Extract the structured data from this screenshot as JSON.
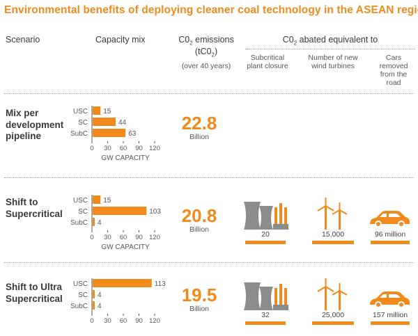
{
  "title": "Environmental benefits of deploying cleaner coal technology in the ASEAN region",
  "headers": {
    "scenario": "Scenario",
    "capacity_mix": "Capacity mix",
    "emissions_line1": "C0",
    "emissions_sub": "2",
    "emissions_tail": " emissions",
    "emissions_line2a": "(tC0",
    "emissions_line2b": "2",
    "emissions_line2c": ")",
    "emissions_period": "(over 40 years)",
    "abated_a": "C0",
    "abated_sub": "2",
    "abated_b": " abated equivalent to",
    "sub_plant": "Subcritical plant closure",
    "sub_turbines": "Number of new wind turbines",
    "sub_cars": "Cars removed from the road"
  },
  "scenarios": [
    {
      "name": "Mix per development pipeline",
      "emissions": "22.8",
      "unit": "Billion",
      "plants": null,
      "turbines": null,
      "cars": null
    },
    {
      "name": "Shift to Supercritical",
      "emissions": "20.8",
      "unit": "Billion",
      "plants": "20",
      "turbines": "15,000",
      "cars": "96 million"
    },
    {
      "name": "Shift to Ultra Supercritical",
      "emissions": "19.5",
      "unit": "Billion",
      "plants": "32",
      "turbines": "25,000",
      "cars": "157 million"
    }
  ],
  "chart_data": [
    {
      "type": "bar",
      "orientation": "horizontal",
      "title": "Mix per development pipeline",
      "categories": [
        "USC",
        "SC",
        "SubC"
      ],
      "values": [
        15,
        44,
        63
      ],
      "xlabel": "GW CAPACITY",
      "xlim": [
        0,
        120
      ],
      "xticks": [
        0,
        30,
        60,
        90,
        120
      ]
    },
    {
      "type": "bar",
      "orientation": "horizontal",
      "title": "Shift to Supercritical",
      "categories": [
        "USC",
        "SC",
        "SubC"
      ],
      "values": [
        15,
        103,
        4
      ],
      "xlabel": "GW CAPACITY",
      "xlim": [
        0,
        120
      ],
      "xticks": [
        0,
        30,
        60,
        90,
        120
      ]
    },
    {
      "type": "bar",
      "orientation": "horizontal",
      "title": "Shift to Ultra Supercritical",
      "categories": [
        "USC",
        "SC",
        "SubC"
      ],
      "values": [
        113,
        4,
        4
      ],
      "xlabel": "",
      "xlim": [
        0,
        120
      ],
      "xticks": [
        0,
        30,
        60,
        90,
        120
      ]
    }
  ],
  "colors": {
    "accent": "#f08a1d",
    "icon_gray": "#8c8c8c",
    "text": "#3a3a3a"
  },
  "icons": {
    "plant": "power-plant-icon",
    "turbine": "wind-turbine-icon",
    "car": "car-icon"
  }
}
